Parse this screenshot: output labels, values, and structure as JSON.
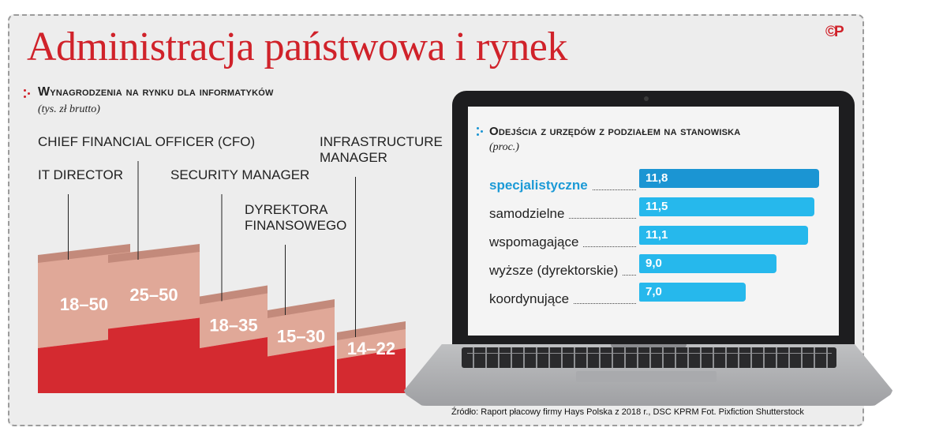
{
  "title": "Administracja państwowa i rynek",
  "logo": "©P",
  "colors": {
    "red": "#d0222a",
    "bar_top": "#cf9787",
    "bar_face_light": "#e0a898",
    "bar_face_dark": "#d42a30",
    "blue": "#26b8ec",
    "blue_highlight": "#1b95d3"
  },
  "chart_data": [
    {
      "type": "bar",
      "title": "Wynagrodzenia na rynku dla informatyków",
      "subtitle": "(tys. zł brutto)",
      "categories": [
        "IT DIRECTOR",
        "CHIEF FINANCIAL OFFICER (CFO)",
        "SECURITY MANAGER",
        "DYREKTORA FINANSOWEGO",
        "INFRASTRUCTURE MANAGER"
      ],
      "category_lines": [
        [
          "IT DIRECTOR"
        ],
        [
          "CHIEF FINANCIAL OFFICER (CFO)"
        ],
        [
          "SECURITY MANAGER"
        ],
        [
          "DYREKTORA",
          "FINANSOWEGO"
        ],
        [
          "INFRASTRUCTURE",
          "MANAGER"
        ]
      ],
      "labels": [
        "18–50",
        "25–50",
        "18–35",
        "15–30",
        "14–22"
      ],
      "series": [
        {
          "name": "",
          "values": [
            18,
            25,
            18,
            15,
            14
          ]
        },
        {
          "name": "",
          "values": [
            50,
            50,
            35,
            30,
            22
          ]
        }
      ]
    },
    {
      "type": "bar",
      "title": "Odejścia z urzędów z podziałem na stanowiska",
      "subtitle": "(proc.)",
      "categories": [
        "specjalistyczne",
        "samodzielne",
        "wspomagające",
        "wyższe (dyrektorskie)",
        "koordynujące"
      ],
      "values": [
        11.8,
        11.5,
        11.1,
        9.0,
        7.0
      ],
      "value_labels": [
        "11,8",
        "11,5",
        "11,1",
        "9,0",
        "7,0"
      ],
      "highlight": "specjalistyczne"
    }
  ],
  "source": "Źródło: Raport płacowy firmy Hays Polska z 2018 r., DSC KPRM    Fot. Pixfiction Shutterstock"
}
